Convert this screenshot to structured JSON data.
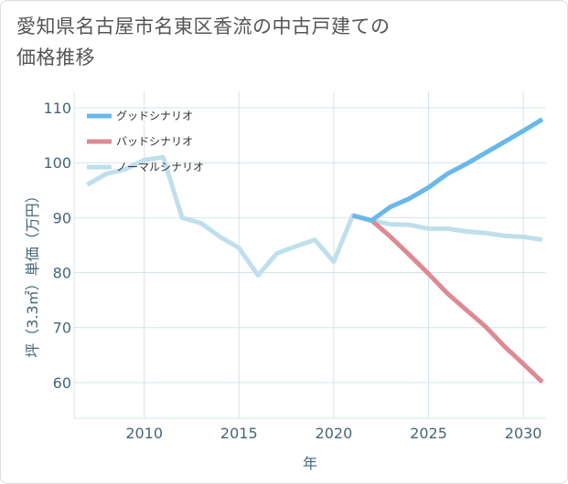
{
  "title": "愛知県名古屋市名東区香流の中古戸建ての価格推移",
  "chart_data": {
    "type": "line",
    "title": "愛知県名古屋市名東区香流の中古戸建ての価格推移",
    "xlabel": "年",
    "ylabel": "坪（3.3㎡）単価（万円）",
    "xlim": [
      2006.3,
      2031.2
    ],
    "ylim": [
      53.5,
      113
    ],
    "xticks": [
      2010,
      2015,
      2020,
      2025,
      2030
    ],
    "yticks": [
      60,
      70,
      80,
      90,
      100,
      110
    ],
    "grid": true,
    "legend_position": "top-left",
    "series": [
      {
        "name": "グッドシナリオ",
        "color": "#6ab8ea",
        "x": [
          2021,
          2022,
          2023,
          2024,
          2025,
          2026,
          2027,
          2028,
          2029,
          2030,
          2031
        ],
        "y": [
          90.4,
          89.5,
          92.0,
          93.5,
          95.5,
          98.0,
          99.8,
          101.8,
          103.8,
          105.8,
          107.9
        ]
      },
      {
        "name": "バッドシナリオ",
        "color": "#dd8a94",
        "x": [
          2021,
          2022,
          2023,
          2024,
          2025,
          2026,
          2027,
          2028,
          2029,
          2030,
          2031
        ],
        "y": [
          90.4,
          89.5,
          86.5,
          83.2,
          79.8,
          76.2,
          73.2,
          70.2,
          66.6,
          63.4,
          60.1
        ]
      },
      {
        "name": "ノーマルシナリオ",
        "color": "#bfdfec",
        "x": [
          2007,
          2008,
          2009,
          2010,
          2011,
          2012,
          2013,
          2014,
          2015,
          2016,
          2017,
          2018,
          2019,
          2020,
          2021,
          2022,
          2023,
          2024,
          2025,
          2026,
          2027,
          2028,
          2029,
          2030,
          2031
        ],
        "y": [
          96.0,
          98.0,
          98.8,
          100.5,
          101.0,
          90.0,
          89.0,
          86.5,
          84.5,
          79.5,
          83.5,
          84.8,
          86.0,
          82.0,
          90.4,
          89.5,
          88.8,
          88.7,
          88.0,
          88.0,
          87.5,
          87.2,
          86.7,
          86.5,
          86.0
        ]
      }
    ]
  }
}
